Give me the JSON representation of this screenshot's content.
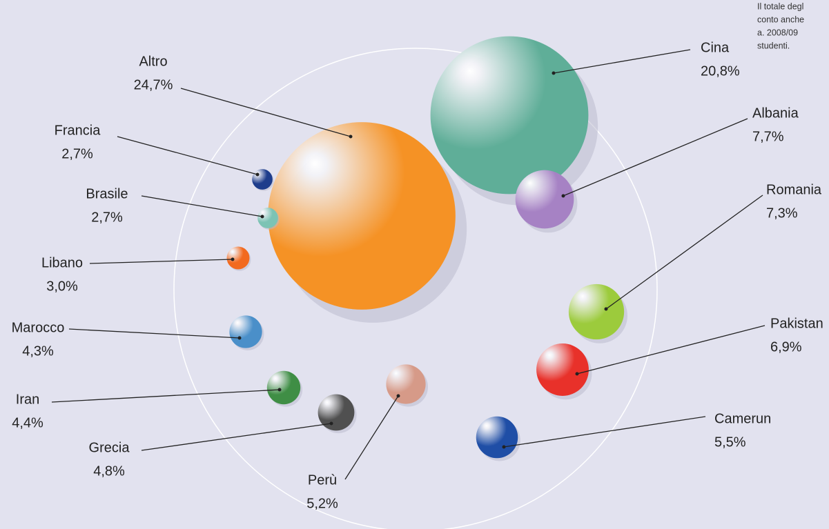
{
  "chart_data": {
    "type": "bubble",
    "categories": [
      "Cina",
      "Altro",
      "Francia",
      "Brasile",
      "Libano",
      "Marocco",
      "Iran",
      "Grecia",
      "Perù",
      "Camerun",
      "Pakistan",
      "Romania",
      "Albania"
    ],
    "values": [
      20.8,
      24.7,
      2.7,
      2.7,
      3.0,
      4.3,
      4.4,
      4.8,
      5.2,
      5.5,
      6.9,
      7.3,
      7.7
    ],
    "value_labels": [
      "20,8%",
      "24,7%",
      "2,7%",
      "2,7%",
      "3,0%",
      "4,3%",
      "4,4%",
      "4,8%",
      "5,2%",
      "5,5%",
      "6,9%",
      "7,3%",
      "7,7%"
    ],
    "colors": [
      "#5fae98",
      "#f59225",
      "#1e3d8c",
      "#7cc3b4",
      "#f26a1f",
      "#4a8fc9",
      "#3f8e45",
      "#505050",
      "#d69a88",
      "#1f4ea6",
      "#e8312a",
      "#9ccb3c",
      "#a682c4"
    ],
    "note": [
      "Il totale degl",
      "conto anche",
      "a. 2008/09",
      "studenti."
    ]
  }
}
